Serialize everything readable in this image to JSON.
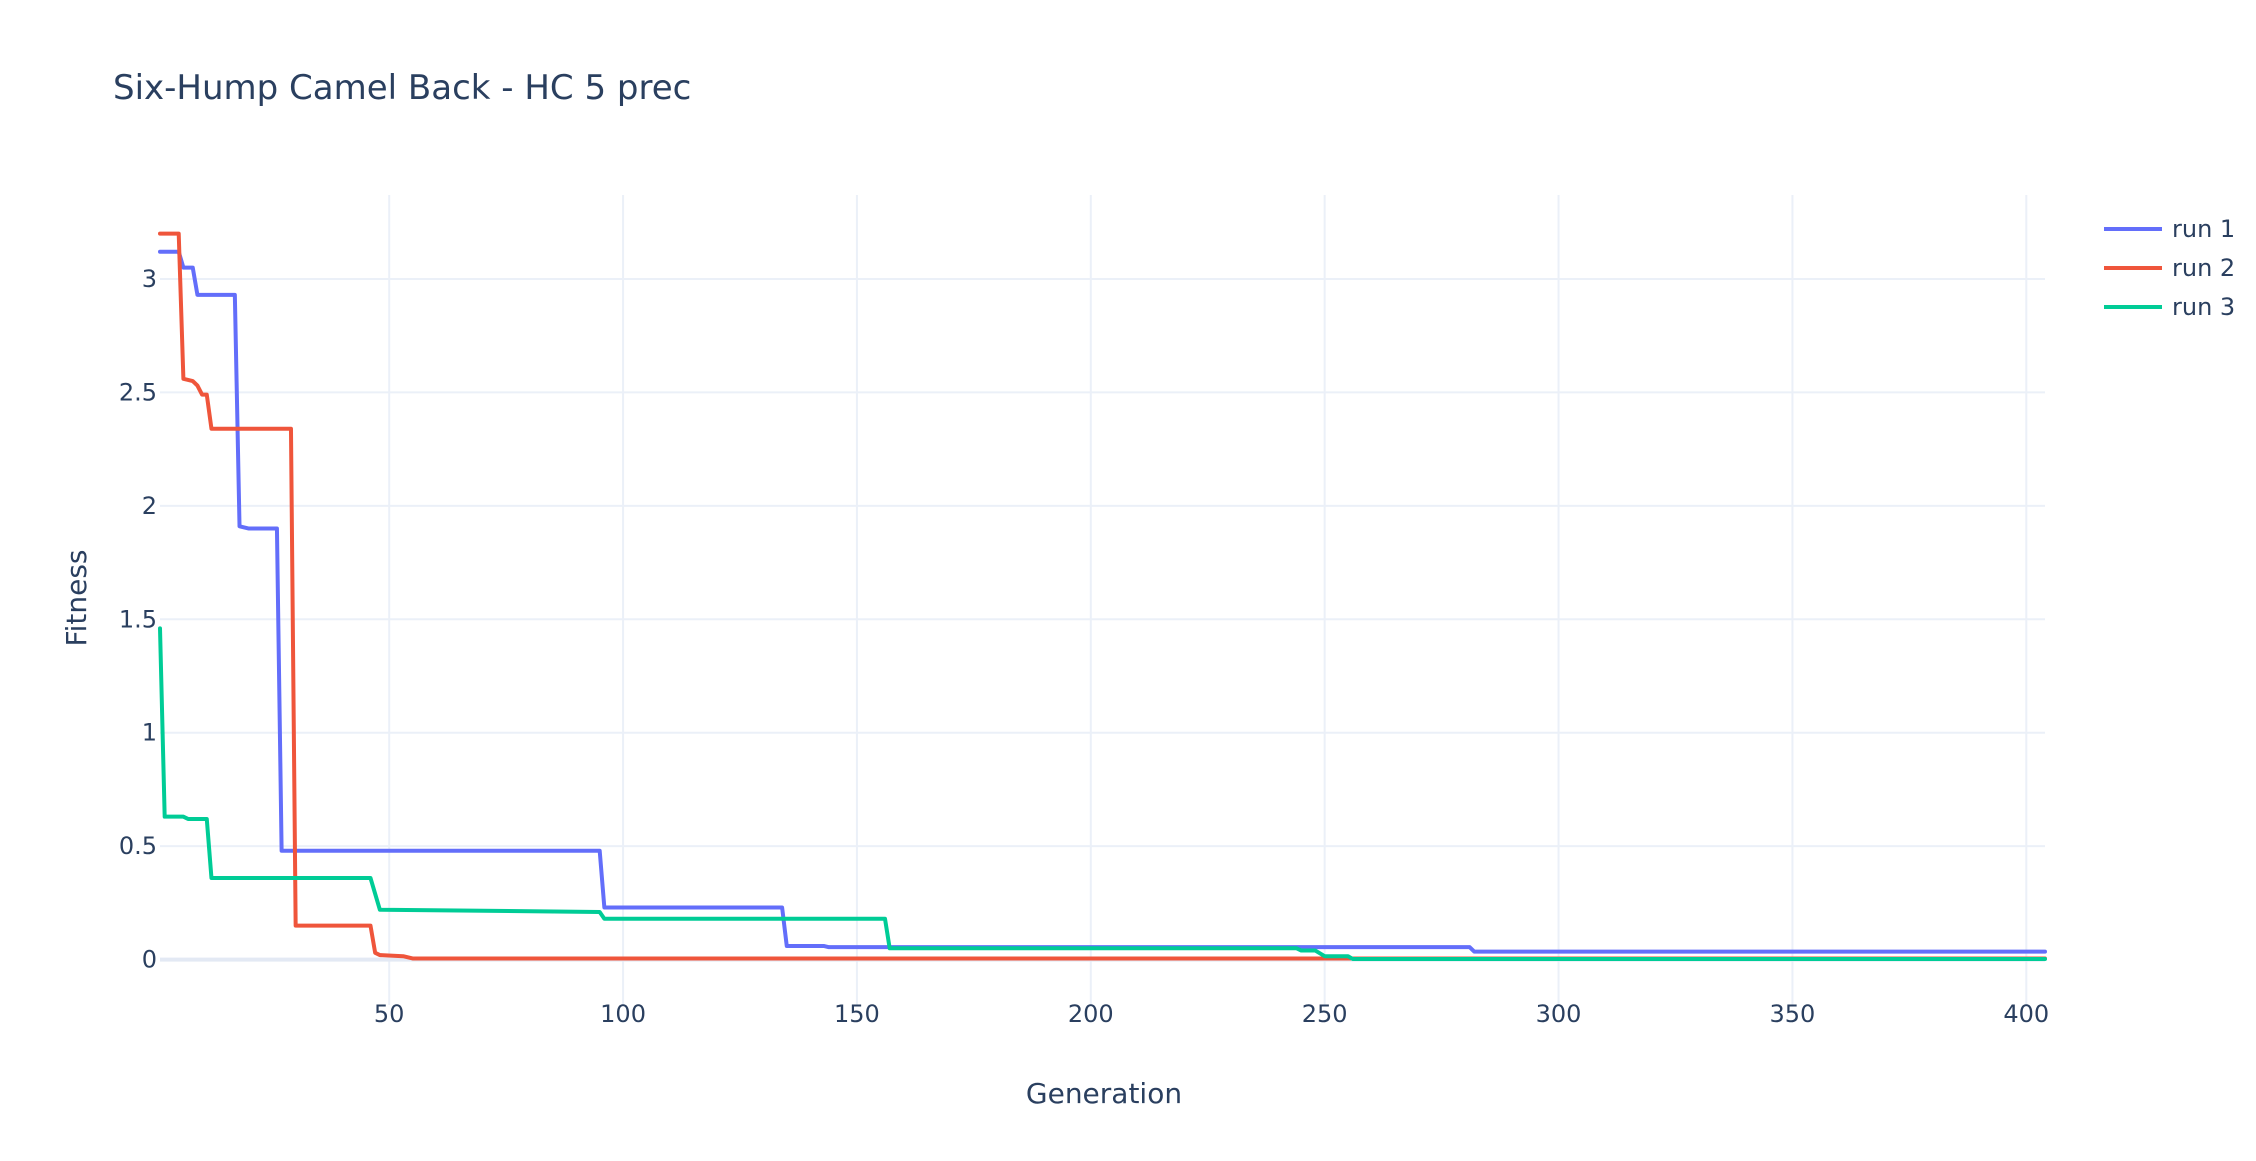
{
  "chart_data": {
    "type": "line",
    "title": "Six-Hump Camel Back - HC 5 prec",
    "xlabel": "Generation",
    "ylabel": "Fitness",
    "xlim": [
      1,
      404
    ],
    "ylim": [
      -0.2,
      3.37
    ],
    "x_ticks": [
      50,
      100,
      150,
      200,
      250,
      300,
      350,
      400
    ],
    "y_ticks": [
      0,
      0.5,
      1,
      1.5,
      2,
      2.5,
      3
    ],
    "y_tick_labels": [
      "0",
      "0.5",
      "1",
      "1.5",
      "2",
      "2.5",
      "3"
    ],
    "grid": true,
    "legend_position": "top-right",
    "series": [
      {
        "name": "run 1",
        "color": "#636efa",
        "points": [
          [
            1,
            3.12
          ],
          [
            5,
            3.12
          ],
          [
            6,
            3.05
          ],
          [
            8,
            3.05
          ],
          [
            9,
            2.93
          ],
          [
            17,
            2.93
          ],
          [
            18,
            1.91
          ],
          [
            20,
            1.9
          ],
          [
            26,
            1.9
          ],
          [
            27,
            0.48
          ],
          [
            95,
            0.48
          ],
          [
            96,
            0.23
          ],
          [
            134,
            0.23
          ],
          [
            135,
            0.06
          ],
          [
            143,
            0.06
          ],
          [
            144,
            0.055
          ],
          [
            281,
            0.055
          ],
          [
            282,
            0.035
          ],
          [
            404,
            0.035
          ]
        ]
      },
      {
        "name": "run 2",
        "color": "#ef553b",
        "points": [
          [
            1,
            3.2
          ],
          [
            5,
            3.2
          ],
          [
            6,
            2.56
          ],
          [
            8,
            2.55
          ],
          [
            9,
            2.53
          ],
          [
            10,
            2.49
          ],
          [
            11,
            2.49
          ],
          [
            12,
            2.34
          ],
          [
            29,
            2.34
          ],
          [
            30,
            0.15
          ],
          [
            46,
            0.15
          ],
          [
            47,
            0.03
          ],
          [
            48,
            0.02
          ],
          [
            53,
            0.015
          ],
          [
            54,
            0.01
          ],
          [
            55,
            0.005
          ],
          [
            404,
            0.005
          ]
        ]
      },
      {
        "name": "run 3",
        "color": "#00cc96",
        "points": [
          [
            1,
            1.46
          ],
          [
            2,
            0.63
          ],
          [
            6,
            0.63
          ],
          [
            7,
            0.62
          ],
          [
            11,
            0.62
          ],
          [
            12,
            0.36
          ],
          [
            46,
            0.36
          ],
          [
            48,
            0.22
          ],
          [
            95,
            0.21
          ],
          [
            96,
            0.18
          ],
          [
            156,
            0.18
          ],
          [
            157,
            0.05
          ],
          [
            244,
            0.05
          ],
          [
            245,
            0.04
          ],
          [
            248,
            0.04
          ],
          [
            250,
            0.015
          ],
          [
            255,
            0.015
          ],
          [
            256,
            0.003
          ],
          [
            404,
            0.003
          ]
        ]
      }
    ]
  }
}
